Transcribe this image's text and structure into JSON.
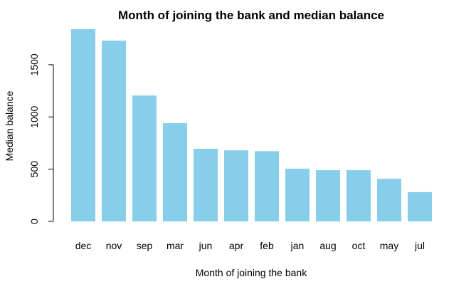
{
  "chart_data": {
    "type": "bar",
    "title": "Month of joining the bank and median balance",
    "xlabel": "Month of joining the bank",
    "ylabel": "Median balance",
    "categories": [
      "dec",
      "nov",
      "sep",
      "mar",
      "jun",
      "apr",
      "feb",
      "jan",
      "aug",
      "oct",
      "may",
      "jul"
    ],
    "values": [
      1840,
      1730,
      1205,
      940,
      695,
      680,
      672,
      505,
      490,
      490,
      408,
      280
    ],
    "ylim": [
      0,
      1840
    ],
    "yticks": [
      0,
      500,
      1000,
      1500
    ],
    "bar_color": "#87CEEB",
    "grid": false
  }
}
